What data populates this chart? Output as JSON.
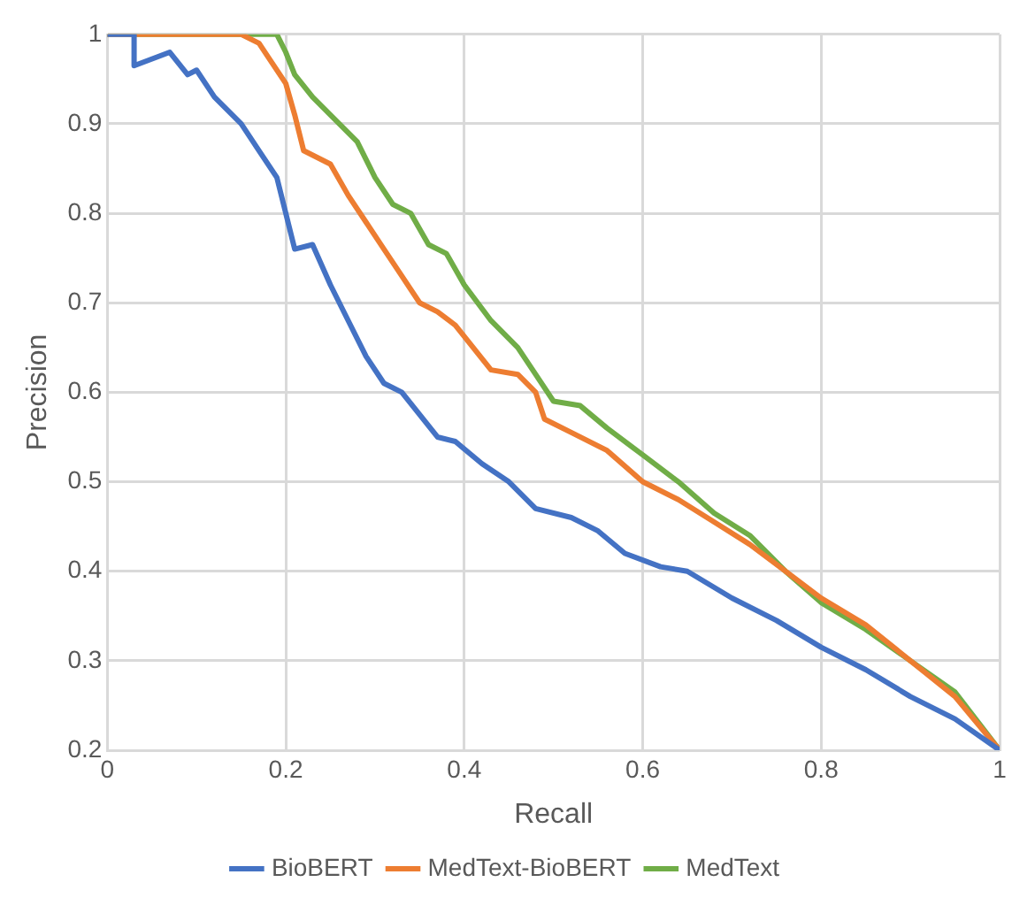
{
  "chart_data": {
    "type": "line",
    "xlabel": "Recall",
    "ylabel": "Precision",
    "xlim": [
      0,
      1
    ],
    "xticks": [
      0,
      0.2,
      0.4,
      0.6,
      0.8,
      1
    ],
    "ylim": [
      0.2,
      1
    ],
    "yticks": [
      0.2,
      0.3,
      0.4,
      0.5,
      0.6,
      0.7,
      0.8,
      0.9,
      1
    ],
    "grid": true,
    "legend": "bottom",
    "series": [
      {
        "name": "BioBERT",
        "color": "#4472c4",
        "x": [
          0,
          0.03,
          0.03,
          0.07,
          0.09,
          0.1,
          0.12,
          0.15,
          0.17,
          0.19,
          0.2,
          0.21,
          0.23,
          0.25,
          0.27,
          0.29,
          0.31,
          0.33,
          0.35,
          0.37,
          0.39,
          0.42,
          0.45,
          0.48,
          0.52,
          0.55,
          0.58,
          0.62,
          0.65,
          0.7,
          0.75,
          0.8,
          0.85,
          0.9,
          0.95,
          1
        ],
        "values": [
          1,
          1,
          0.965,
          0.98,
          0.955,
          0.96,
          0.93,
          0.9,
          0.87,
          0.84,
          0.8,
          0.76,
          0.765,
          0.72,
          0.68,
          0.64,
          0.61,
          0.6,
          0.575,
          0.55,
          0.545,
          0.52,
          0.5,
          0.47,
          0.46,
          0.445,
          0.42,
          0.405,
          0.4,
          0.37,
          0.345,
          0.315,
          0.29,
          0.26,
          0.235,
          0.2
        ]
      },
      {
        "name": "MedText-BioBERT",
        "color": "#ed7d31",
        "x": [
          0,
          0.15,
          0.17,
          0.18,
          0.2,
          0.21,
          0.22,
          0.25,
          0.27,
          0.29,
          0.31,
          0.33,
          0.35,
          0.37,
          0.39,
          0.41,
          0.43,
          0.46,
          0.48,
          0.49,
          0.52,
          0.56,
          0.6,
          0.64,
          0.68,
          0.72,
          0.76,
          0.8,
          0.85,
          0.9,
          0.95,
          1
        ],
        "values": [
          1,
          1,
          0.99,
          0.975,
          0.945,
          0.91,
          0.87,
          0.855,
          0.82,
          0.79,
          0.76,
          0.73,
          0.7,
          0.69,
          0.675,
          0.65,
          0.625,
          0.62,
          0.6,
          0.57,
          0.555,
          0.535,
          0.5,
          0.48,
          0.455,
          0.43,
          0.4,
          0.37,
          0.34,
          0.3,
          0.26,
          0.2
        ]
      },
      {
        "name": "MedText",
        "color": "#70ad47",
        "x": [
          0,
          0.19,
          0.2,
          0.21,
          0.23,
          0.25,
          0.28,
          0.3,
          0.32,
          0.34,
          0.36,
          0.38,
          0.4,
          0.43,
          0.46,
          0.48,
          0.5,
          0.53,
          0.56,
          0.6,
          0.64,
          0.68,
          0.72,
          0.76,
          0.8,
          0.85,
          0.9,
          0.95,
          1
        ],
        "values": [
          1,
          1,
          0.98,
          0.955,
          0.93,
          0.91,
          0.88,
          0.84,
          0.81,
          0.8,
          0.765,
          0.755,
          0.72,
          0.68,
          0.65,
          0.62,
          0.59,
          0.585,
          0.56,
          0.53,
          0.5,
          0.465,
          0.44,
          0.4,
          0.365,
          0.335,
          0.3,
          0.265,
          0.2
        ]
      }
    ]
  }
}
